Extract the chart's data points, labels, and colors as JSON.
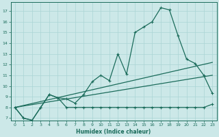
{
  "xlabel": "Humidex (Indice chaleur)",
  "bg_color": "#cce8e8",
  "line_color": "#1a6b5a",
  "grid_color": "#aad4d4",
  "xlim": [
    -0.5,
    23.5
  ],
  "ylim": [
    6.8,
    17.8
  ],
  "yticks": [
    7,
    8,
    9,
    10,
    11,
    12,
    13,
    14,
    15,
    16,
    17
  ],
  "xticks": [
    0,
    1,
    2,
    3,
    4,
    5,
    6,
    7,
    8,
    9,
    10,
    11,
    12,
    13,
    14,
    15,
    16,
    17,
    18,
    19,
    20,
    21,
    22,
    23
  ],
  "main_x": [
    0,
    1,
    2,
    3,
    4,
    5,
    6,
    7,
    8,
    9,
    10,
    11,
    12,
    13,
    14,
    15,
    16,
    17,
    18,
    19,
    20,
    21,
    22,
    23
  ],
  "main_y": [
    8.0,
    7.0,
    6.8,
    8.0,
    9.2,
    8.9,
    8.8,
    8.4,
    9.2,
    10.4,
    11.0,
    10.5,
    13.0,
    11.1,
    15.0,
    15.5,
    16.0,
    17.3,
    17.1,
    14.7,
    12.5,
    12.1,
    11.0,
    9.3
  ],
  "flat_x": [
    0,
    1,
    2,
    3,
    4,
    5,
    6,
    7,
    8,
    9,
    10,
    11,
    12,
    13,
    14,
    15,
    16,
    17,
    18,
    19,
    20,
    21,
    22,
    23
  ],
  "flat_y": [
    8.0,
    7.0,
    6.8,
    8.0,
    9.2,
    8.9,
    8.0,
    8.0,
    8.0,
    8.0,
    8.0,
    8.0,
    8.0,
    8.0,
    8.0,
    8.0,
    8.0,
    8.0,
    8.0,
    8.0,
    8.0,
    8.0,
    8.0,
    8.3
  ],
  "trend1_x": [
    0,
    23
  ],
  "trend1_y": [
    8.0,
    12.2
  ],
  "trend2_x": [
    0,
    23
  ],
  "trend2_y": [
    8.0,
    11.0
  ]
}
